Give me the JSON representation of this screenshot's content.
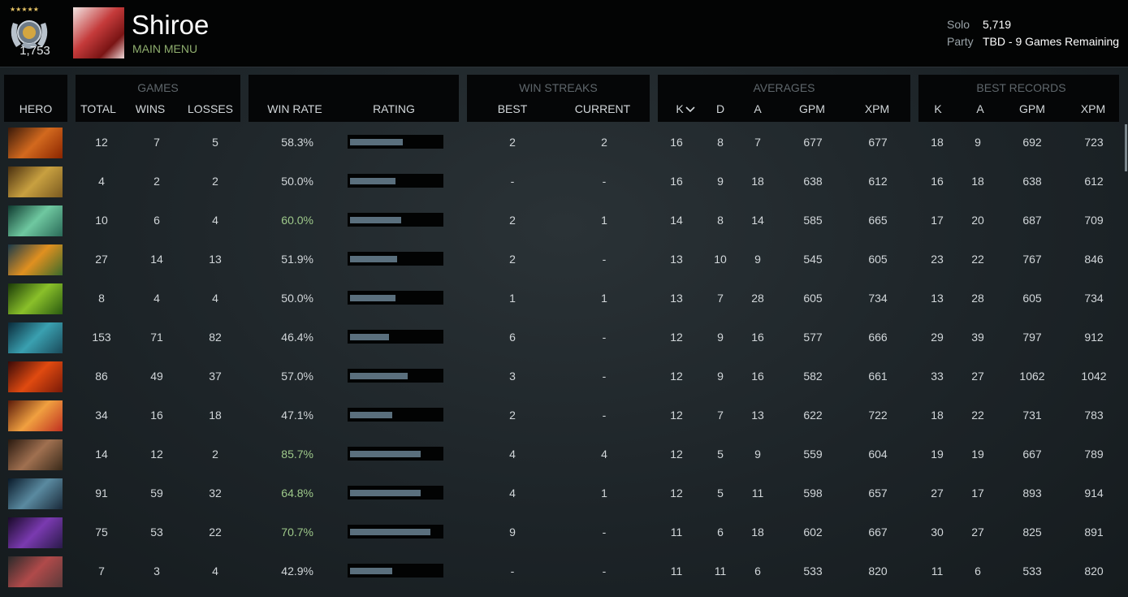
{
  "profile": {
    "name": "Shiroe",
    "menu_link": "MAIN MENU",
    "medal_rating": "1,753",
    "solo_label": "Solo",
    "solo_value": "5,719",
    "party_label": "Party",
    "party_value": "TBD - 9 Games Remaining"
  },
  "headers": {
    "groups": {
      "games": "GAMES",
      "win_streaks": "WIN STREAKS",
      "averages": "AVERAGES",
      "best_records": "BEST RECORDS"
    },
    "columns": {
      "hero": "HERO",
      "total": "TOTAL",
      "wins": "WINS",
      "losses": "LOSSES",
      "win_rate": "WIN RATE",
      "rating": "RATING",
      "best": "BEST",
      "current": "CURRENT",
      "avg_k": "K",
      "avg_d": "D",
      "avg_a": "A",
      "avg_gpm": "GPM",
      "avg_xpm": "XPM",
      "rec_k": "K",
      "rec_a": "A",
      "rec_gpm": "GPM",
      "rec_xpm": "XPM"
    }
  },
  "colors": {
    "win_rate_highlight": "#9ec98a",
    "rating_bar": "#5a6f7d",
    "menu_link": "#8fae6e"
  },
  "rows": [
    {
      "hero_icon": "hero-portrait-1-icon",
      "hero_colors": [
        "#3a1a0a",
        "#d2691e",
        "#8b2500"
      ],
      "total": "12",
      "wins": "7",
      "losses": "5",
      "win_rate": "58.3%",
      "rating": 0.58,
      "highlight": false,
      "best": "2",
      "current": "2",
      "avg_k": "16",
      "avg_d": "8",
      "avg_a": "7",
      "avg_gpm": "677",
      "avg_xpm": "677",
      "rec_k": "18",
      "rec_a": "9",
      "rec_gpm": "692",
      "rec_xpm": "723"
    },
    {
      "hero_icon": "hero-portrait-2-icon",
      "hero_colors": [
        "#4a3010",
        "#c8a040",
        "#7a5a20"
      ],
      "total": "4",
      "wins": "2",
      "losses": "2",
      "win_rate": "50.0%",
      "rating": 0.5,
      "highlight": false,
      "best": "-",
      "current": "-",
      "avg_k": "16",
      "avg_d": "9",
      "avg_a": "18",
      "avg_gpm": "638",
      "avg_xpm": "612",
      "rec_k": "16",
      "rec_a": "18",
      "rec_gpm": "638",
      "rec_xpm": "612"
    },
    {
      "hero_icon": "hero-portrait-3-icon",
      "hero_colors": [
        "#0f3a30",
        "#6fc8a0",
        "#2a6a58"
      ],
      "total": "10",
      "wins": "6",
      "losses": "4",
      "win_rate": "60.0%",
      "rating": 0.56,
      "highlight": true,
      "best": "2",
      "current": "1",
      "avg_k": "14",
      "avg_d": "8",
      "avg_a": "14",
      "avg_gpm": "585",
      "avg_xpm": "665",
      "rec_k": "17",
      "rec_a": "20",
      "rec_gpm": "687",
      "rec_xpm": "709"
    },
    {
      "hero_icon": "hero-portrait-4-icon",
      "hero_colors": [
        "#1a3a4a",
        "#e09020",
        "#3a6a2a"
      ],
      "total": "27",
      "wins": "14",
      "losses": "13",
      "win_rate": "51.9%",
      "rating": 0.52,
      "highlight": false,
      "best": "2",
      "current": "-",
      "avg_k": "13",
      "avg_d": "10",
      "avg_a": "9",
      "avg_gpm": "545",
      "avg_xpm": "605",
      "rec_k": "23",
      "rec_a": "22",
      "rec_gpm": "767",
      "rec_xpm": "846"
    },
    {
      "hero_icon": "hero-portrait-5-icon",
      "hero_colors": [
        "#1a3a08",
        "#8ac02a",
        "#2a5a10"
      ],
      "total": "8",
      "wins": "4",
      "losses": "4",
      "win_rate": "50.0%",
      "rating": 0.5,
      "highlight": false,
      "best": "1",
      "current": "1",
      "avg_k": "13",
      "avg_d": "7",
      "avg_a": "28",
      "avg_gpm": "605",
      "avg_xpm": "734",
      "rec_k": "13",
      "rec_a": "28",
      "rec_gpm": "605",
      "rec_xpm": "734"
    },
    {
      "hero_icon": "hero-portrait-6-icon",
      "hero_colors": [
        "#0a2a3a",
        "#3aa0b0",
        "#1a4a5a"
      ],
      "total": "153",
      "wins": "71",
      "losses": "82",
      "win_rate": "46.4%",
      "rating": 0.43,
      "highlight": false,
      "best": "6",
      "current": "-",
      "avg_k": "12",
      "avg_d": "9",
      "avg_a": "16",
      "avg_gpm": "577",
      "avg_xpm": "666",
      "rec_k": "29",
      "rec_a": "39",
      "rec_gpm": "797",
      "rec_xpm": "912"
    },
    {
      "hero_icon": "hero-portrait-7-icon",
      "hero_colors": [
        "#3a0a08",
        "#e04a10",
        "#7a1a08"
      ],
      "total": "86",
      "wins": "49",
      "losses": "37",
      "win_rate": "57.0%",
      "rating": 0.63,
      "highlight": false,
      "best": "3",
      "current": "-",
      "avg_k": "12",
      "avg_d": "9",
      "avg_a": "16",
      "avg_gpm": "582",
      "avg_xpm": "661",
      "rec_k": "33",
      "rec_a": "27",
      "rec_gpm": "1062",
      "rec_xpm": "1042"
    },
    {
      "hero_icon": "hero-portrait-8-icon",
      "hero_colors": [
        "#5a1a0a",
        "#f0a040",
        "#c03020"
      ],
      "total": "34",
      "wins": "16",
      "losses": "18",
      "win_rate": "47.1%",
      "rating": 0.46,
      "highlight": false,
      "best": "2",
      "current": "-",
      "avg_k": "12",
      "avg_d": "7",
      "avg_a": "13",
      "avg_gpm": "622",
      "avg_xpm": "722",
      "rec_k": "18",
      "rec_a": "22",
      "rec_gpm": "731",
      "rec_xpm": "783"
    },
    {
      "hero_icon": "hero-portrait-9-icon",
      "hero_colors": [
        "#2a1a10",
        "#a07050",
        "#3a2a1a"
      ],
      "total": "14",
      "wins": "12",
      "losses": "2",
      "win_rate": "85.7%",
      "rating": 0.78,
      "highlight": true,
      "best": "4",
      "current": "4",
      "avg_k": "12",
      "avg_d": "5",
      "avg_a": "9",
      "avg_gpm": "559",
      "avg_xpm": "604",
      "rec_k": "19",
      "rec_a": "19",
      "rec_gpm": "667",
      "rec_xpm": "789"
    },
    {
      "hero_icon": "hero-portrait-10-icon",
      "hero_colors": [
        "#0a1a2a",
        "#5a8aa0",
        "#1a2a3a"
      ],
      "total": "91",
      "wins": "59",
      "losses": "32",
      "win_rate": "64.8%",
      "rating": 0.78,
      "highlight": true,
      "best": "4",
      "current": "1",
      "avg_k": "12",
      "avg_d": "5",
      "avg_a": "11",
      "avg_gpm": "598",
      "avg_xpm": "657",
      "rec_k": "27",
      "rec_a": "17",
      "rec_gpm": "893",
      "rec_xpm": "914"
    },
    {
      "hero_icon": "hero-portrait-11-icon",
      "hero_colors": [
        "#1a0a2a",
        "#7a3ab0",
        "#2a1a4a"
      ],
      "total": "75",
      "wins": "53",
      "losses": "22",
      "win_rate": "70.7%",
      "rating": 0.88,
      "highlight": true,
      "best": "9",
      "current": "-",
      "avg_k": "11",
      "avg_d": "6",
      "avg_a": "18",
      "avg_gpm": "602",
      "avg_xpm": "667",
      "rec_k": "30",
      "rec_a": "27",
      "rec_gpm": "825",
      "rec_xpm": "891"
    },
    {
      "hero_icon": "hero-portrait-12-icon",
      "hero_colors": [
        "#2a2a2a",
        "#b04a4a",
        "#5a3a3a"
      ],
      "total": "7",
      "wins": "3",
      "losses": "4",
      "win_rate": "42.9%",
      "rating": 0.46,
      "highlight": false,
      "best": "-",
      "current": "-",
      "avg_k": "11",
      "avg_d": "11",
      "avg_a": "6",
      "avg_gpm": "533",
      "avg_xpm": "820",
      "rec_k": "11",
      "rec_a": "6",
      "rec_gpm": "533",
      "rec_xpm": "820"
    }
  ]
}
